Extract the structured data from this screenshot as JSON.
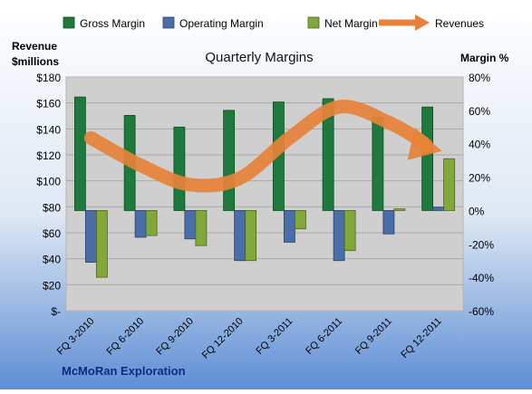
{
  "chart_data": {
    "type": "bar",
    "title": "Quarterly Margins",
    "footer": "McMoRan Exploration",
    "left_axis": {
      "label_line1": "Revenue",
      "label_line2": "$millions",
      "ticks": [
        "$180",
        "$160",
        "$140",
        "$120",
        "$100",
        "$80",
        "$60",
        "$40",
        "$20",
        "$-"
      ],
      "range": [
        0,
        180
      ]
    },
    "right_axis": {
      "label": "Margin %",
      "ticks": [
        "80%",
        "60%",
        "40%",
        "20%",
        "0%",
        "-20%",
        "-40%",
        "-60%"
      ],
      "range": [
        -60,
        80
      ]
    },
    "categories": [
      "FQ 3-2010",
      "FQ 6-2010",
      "FQ 9-2010",
      "FQ 12-2010",
      "FQ 3-2011",
      "FQ 6-2011",
      "FQ 9-2011",
      "FQ 12-2011"
    ],
    "series": [
      {
        "name": "Gross Margin",
        "kind": "bar",
        "axis": "right",
        "color": "#1e7a3c",
        "values": [
          68,
          57,
          50,
          60,
          65,
          67,
          56,
          62
        ]
      },
      {
        "name": "Operating Margin",
        "kind": "bar",
        "axis": "right",
        "color": "#4a6fa8",
        "values": [
          -31,
          -16,
          -17,
          -30,
          -19,
          -30,
          -14,
          2
        ]
      },
      {
        "name": "Net Margin",
        "kind": "bar",
        "axis": "right",
        "color": "#82a83a",
        "values": [
          -40,
          -15,
          -21,
          -30,
          -11,
          -24,
          1,
          31
        ]
      },
      {
        "name": "Revenues",
        "kind": "line",
        "axis": "left",
        "color": "#e8823a",
        "values": [
          133,
          112,
          97,
          102,
          133,
          157,
          145,
          123
        ]
      }
    ],
    "grid": true,
    "legend": "top"
  }
}
